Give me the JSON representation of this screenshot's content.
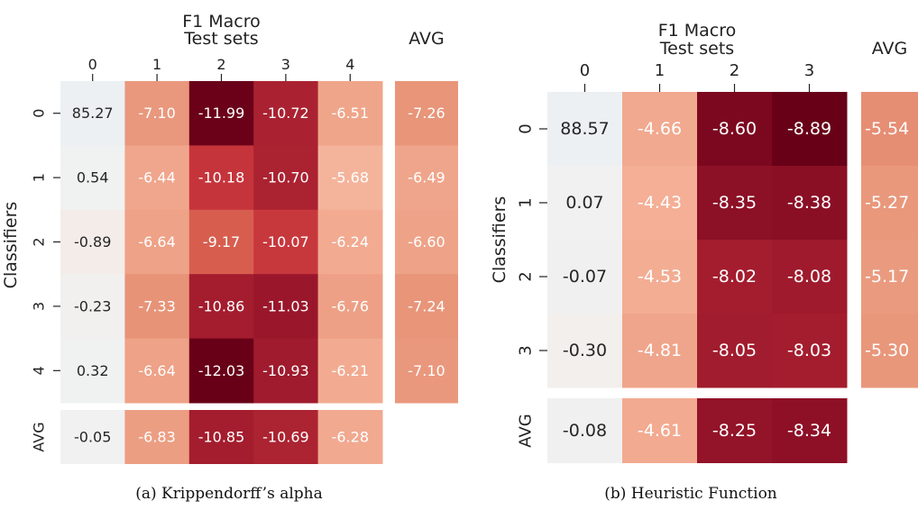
{
  "chart_data": [
    {
      "type": "heatmap",
      "caption": "(a) Krippendorff’s alpha",
      "title": "F1 Macro",
      "xlabel": "Test sets",
      "ylabel": "Classifiers",
      "avg_label": "AVG",
      "x_ticks": [
        "0",
        "1",
        "2",
        "3",
        "4"
      ],
      "y_ticks": [
        "0",
        "1",
        "2",
        "3",
        "4"
      ],
      "values": [
        [
          "85.27",
          "-7.10",
          "-11.99",
          "-10.72",
          "-6.51"
        ],
        [
          "0.54",
          "-6.44",
          "-10.18",
          "-10.70",
          "-5.68"
        ],
        [
          "-0.89",
          "-6.64",
          "-9.17",
          "-10.07",
          "-6.24"
        ],
        [
          "-0.23",
          "-7.33",
          "-10.86",
          "-11.03",
          "-6.76"
        ],
        [
          "0.32",
          "-6.64",
          "-12.03",
          "-10.93",
          "-6.21"
        ]
      ],
      "row_avg": [
        "-7.26",
        "-6.49",
        "-6.60",
        "-7.24",
        "-7.10"
      ],
      "col_avg": [
        "-0.05",
        "-6.83",
        "-10.85",
        "-10.69",
        "-6.28"
      ]
    },
    {
      "type": "heatmap",
      "caption": "(b) Heuristic Function",
      "title": "F1 Macro",
      "xlabel": "Test sets",
      "ylabel": "Classifiers",
      "avg_label": "AVG",
      "x_ticks": [
        "0",
        "1",
        "2",
        "3"
      ],
      "y_ticks": [
        "0",
        "1",
        "2",
        "3"
      ],
      "values": [
        [
          "88.57",
          "-4.66",
          "-8.60",
          "-8.89"
        ],
        [
          "0.07",
          "-4.43",
          "-8.35",
          "-8.38"
        ],
        [
          "-0.07",
          "-4.53",
          "-8.02",
          "-8.08"
        ],
        [
          "-0.30",
          "-4.81",
          "-8.05",
          "-8.03"
        ]
      ],
      "row_avg": [
        "-5.54",
        "-5.27",
        "-5.17",
        "-5.30"
      ],
      "col_avg": [
        "-0.08",
        "-4.61",
        "-8.25",
        "-8.34"
      ]
    }
  ]
}
